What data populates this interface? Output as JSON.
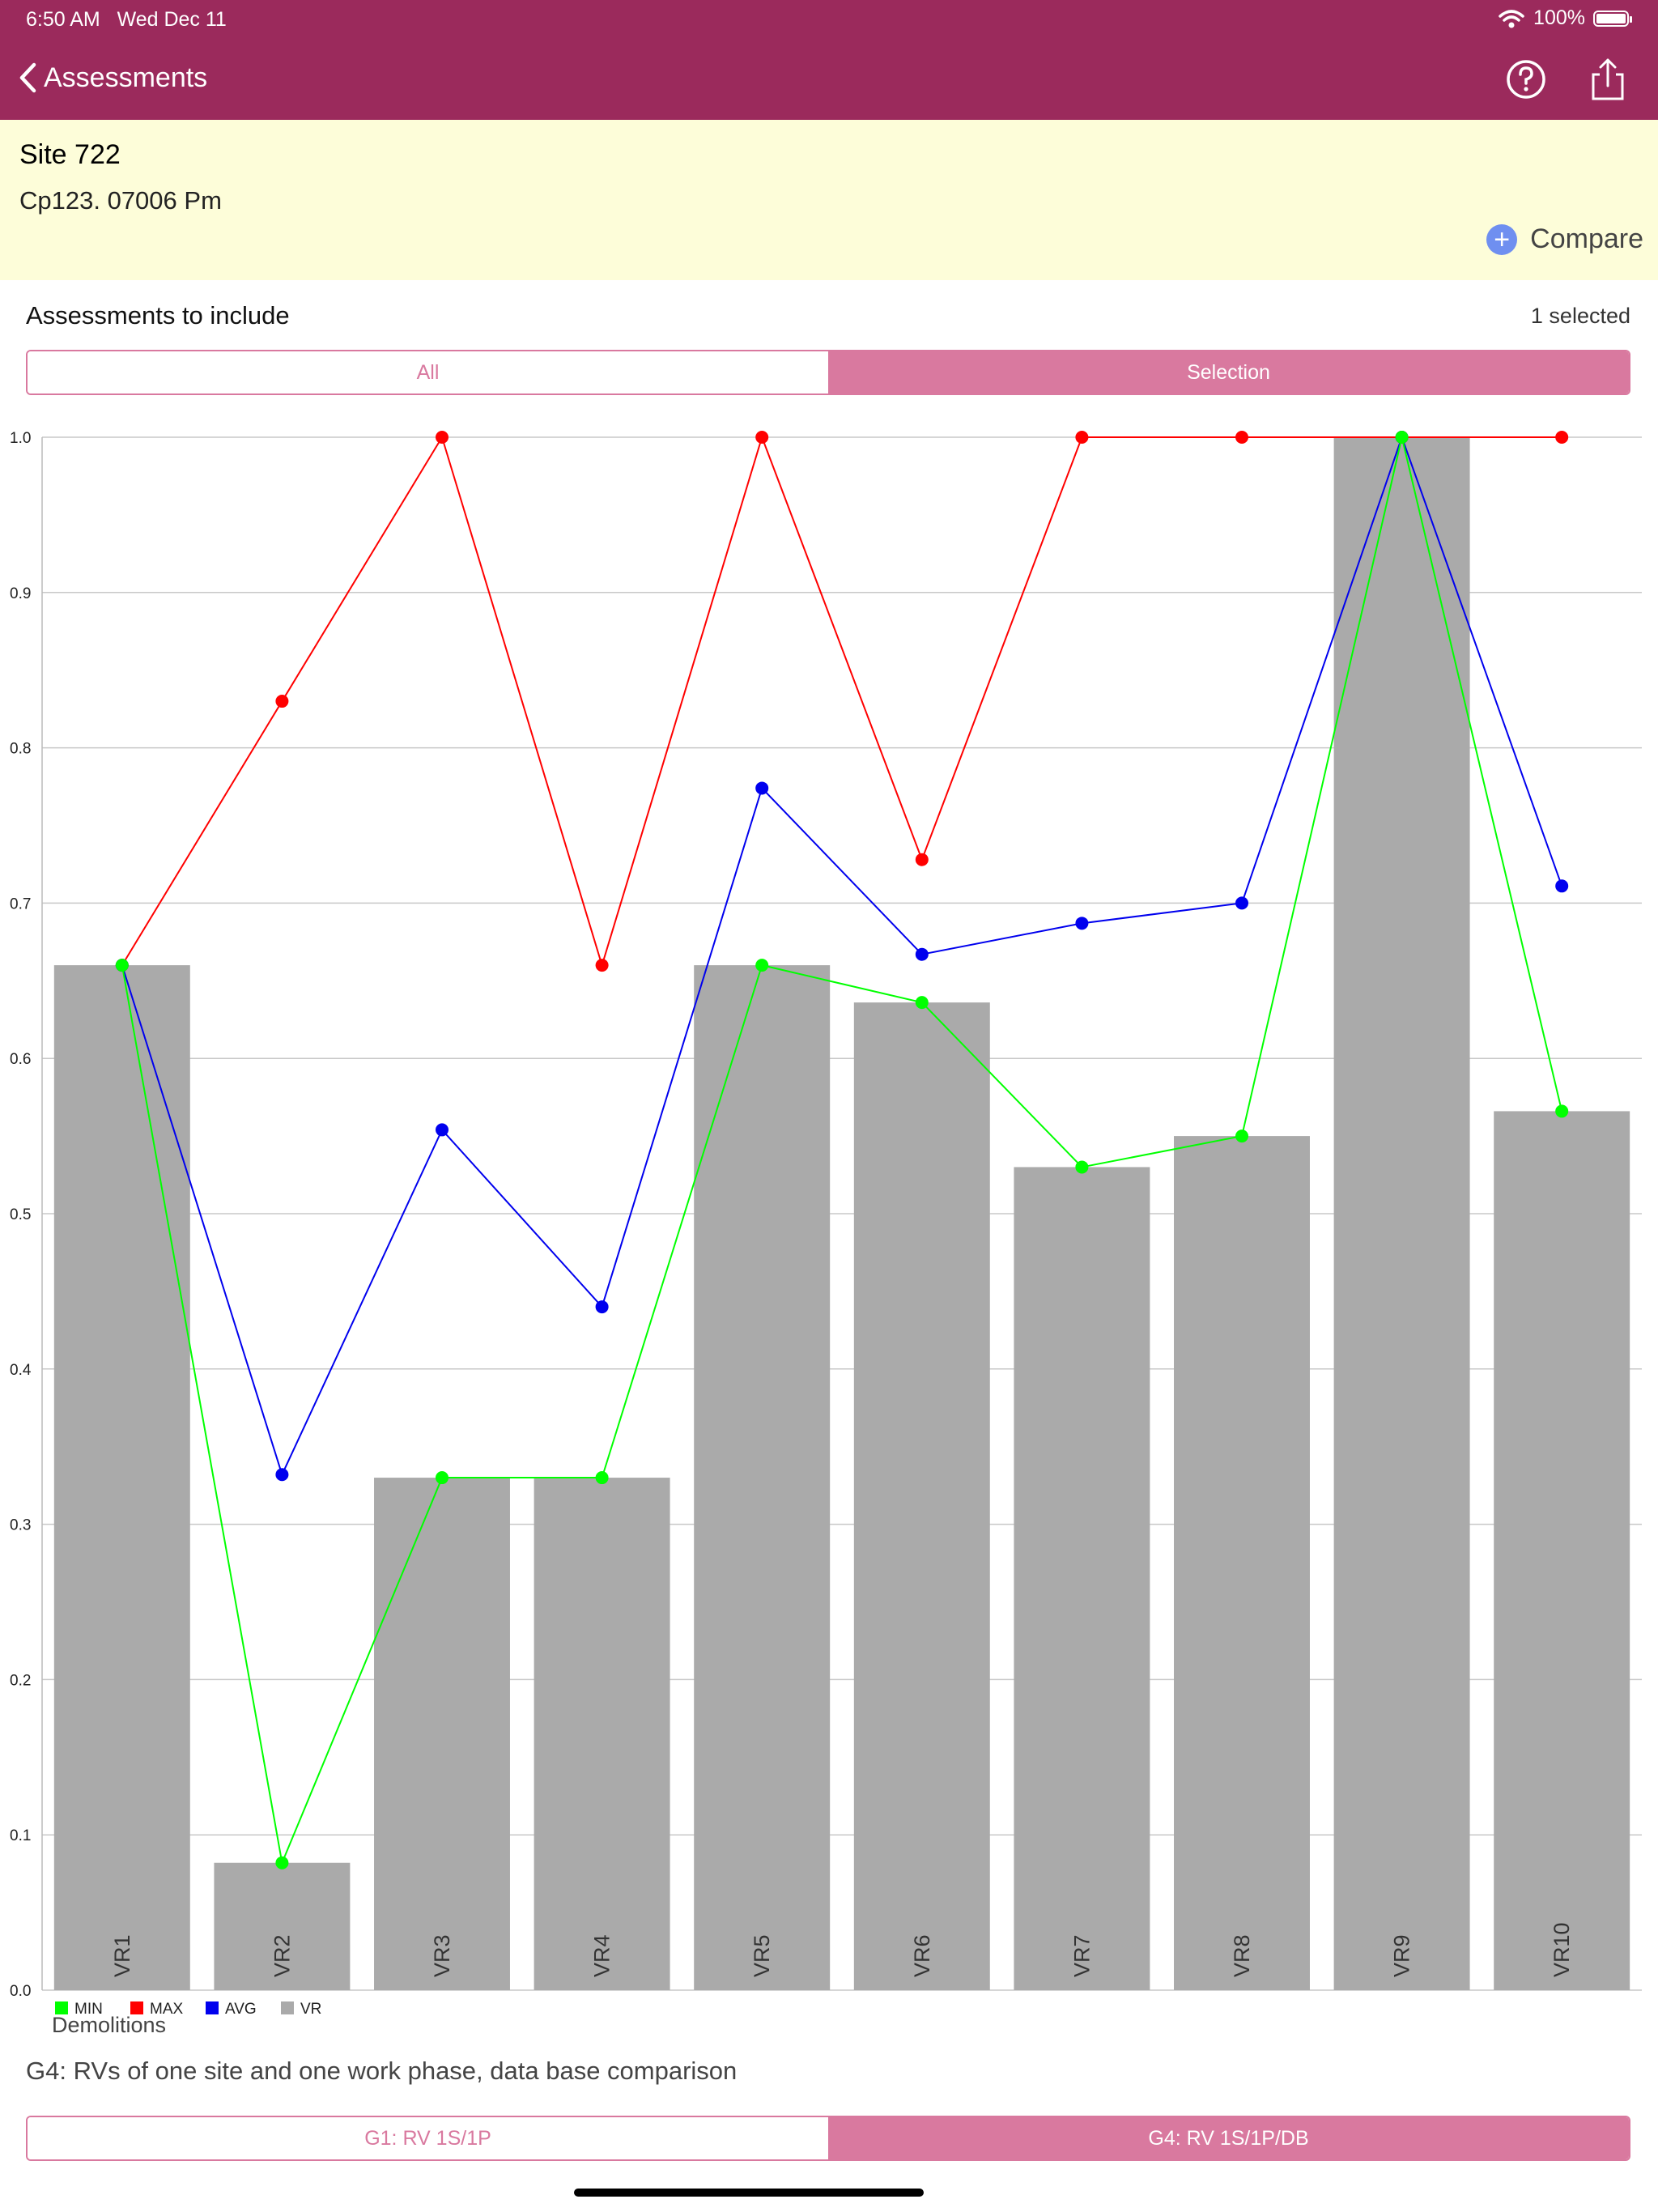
{
  "status_bar": {
    "time": "6:50 AM",
    "date": "Wed Dec 11",
    "battery": "100%",
    "battery_level": 1.0
  },
  "nav": {
    "back_label": "Assessments",
    "help_icon": "question-circle-icon",
    "share_icon": "share-icon"
  },
  "site": {
    "title": "Site 722",
    "subtitle": "Cp123. 07006 Pm",
    "compare_label": "Compare"
  },
  "include": {
    "label": "Assessments to include",
    "count": "1 selected",
    "options": [
      "All",
      "Selection"
    ],
    "selected": "Selection"
  },
  "chart_data": {
    "type": "bar",
    "categories": [
      "VR1",
      "VR2",
      "VR3",
      "VR4",
      "VR5",
      "VR6",
      "VR7",
      "VR8",
      "VR9",
      "VR10"
    ],
    "ylim": [
      0,
      1
    ],
    "yticks": [
      "0.0",
      "0.1",
      "0.2",
      "0.3",
      "0.4",
      "0.5",
      "0.6",
      "0.7",
      "0.8",
      "0.9",
      "1.0"
    ],
    "grid": true,
    "legend_position": "bottom-left",
    "series": [
      {
        "name": "VR",
        "kind": "bar",
        "color": "#aaaaaa",
        "values": [
          0.66,
          0.082,
          0.33,
          0.33,
          0.66,
          0.636,
          0.53,
          0.55,
          1.0,
          0.566
        ]
      },
      {
        "name": "MIN",
        "kind": "line",
        "color": "#00ff00",
        "values": [
          0.66,
          0.082,
          0.33,
          0.33,
          0.66,
          0.636,
          0.53,
          0.55,
          1.0,
          0.566
        ]
      },
      {
        "name": "MAX",
        "kind": "line",
        "color": "#ff0000",
        "values": [
          0.66,
          0.83,
          1.0,
          0.66,
          1.0,
          0.728,
          1.0,
          1.0,
          1.0,
          1.0
        ]
      },
      {
        "name": "AVG",
        "kind": "line",
        "color": "#0000ee",
        "values": [
          0.66,
          0.332,
          0.554,
          0.44,
          0.774,
          0.667,
          0.687,
          0.7,
          1.0,
          0.711
        ]
      }
    ],
    "legend_order": [
      "MIN",
      "MAX",
      "AVG",
      "VR"
    ],
    "xlabel": "Demolitions"
  },
  "caption": "G4: RVs of one site and one work phase, data base comparison",
  "graph_tabs": {
    "options": [
      "G1: RV 1S/1P",
      "G4: RV 1S/1P/DB"
    ],
    "selected": "G4: RV 1S/1P/DB"
  }
}
